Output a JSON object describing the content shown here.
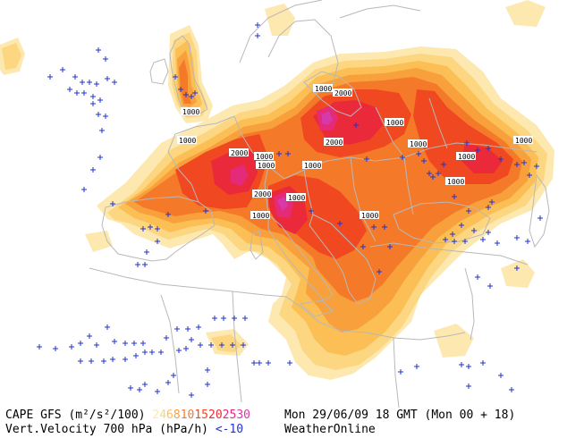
{
  "map": {
    "colors": {
      "ocean": "#ffffff",
      "land": "#ffffff",
      "borders": "#b8b8b8",
      "vv_marker": "#2233cc"
    },
    "cape_scale": [
      {
        "label": "2",
        "color": "#fde8b0"
      },
      {
        "label": "4",
        "color": "#fcd680"
      },
      {
        "label": "6",
        "color": "#fbbf55"
      },
      {
        "label": "8",
        "color": "#f8a03c"
      },
      {
        "label": "10",
        "color": "#f47a2a"
      },
      {
        "label": "15",
        "color": "#f04820"
      },
      {
        "label": "20",
        "color": "#ea2a3a"
      },
      {
        "label": "25",
        "color": "#e42a78"
      },
      {
        "label": "30",
        "color": "#d63aa8"
      }
    ],
    "contour_labels": [
      "1000",
      "2000",
      "1000",
      "1000",
      "2000",
      "1000",
      "1000",
      "1000",
      "2000",
      "1000",
      "1000",
      "1000",
      "2000",
      "1000",
      "1000",
      "1000",
      "1000",
      "1000"
    ]
  },
  "legend": {
    "row1_left": "CAPE GFS (m²/s²/100)",
    "datetime": "Mon 29/06/09 18 GMT (Mon 00 + 18)",
    "row2_left": "Vert.Velocity 700 hPa (hPa/h)",
    "vv_threshold": "<-10",
    "provider": "WeatherOnline"
  }
}
